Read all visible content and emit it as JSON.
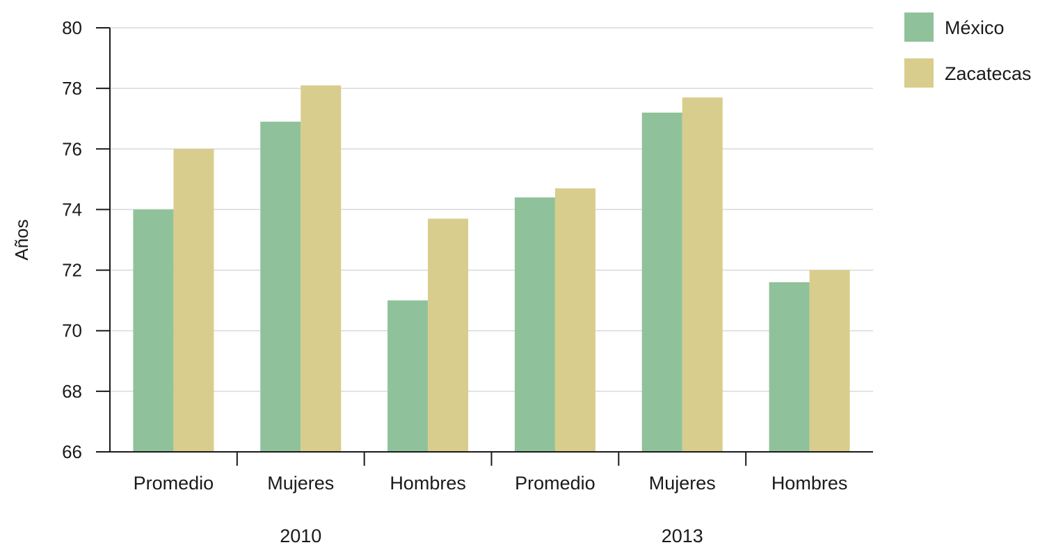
{
  "chart_data": {
    "type": "bar",
    "ylabel": "Años",
    "ylim": [
      66,
      80
    ],
    "yticks": [
      66,
      68,
      70,
      72,
      74,
      76,
      78,
      80
    ],
    "grid": true,
    "legend_position": "top-right",
    "groups": [
      {
        "label": "2010",
        "categories": [
          "Promedio",
          "Mujeres",
          "Hombres"
        ]
      },
      {
        "label": "2013",
        "categories": [
          "Promedio",
          "Mujeres",
          "Hombres"
        ]
      }
    ],
    "categories": [
      "Promedio",
      "Mujeres",
      "Hombres",
      "Promedio",
      "Mujeres",
      "Hombres"
    ],
    "series": [
      {
        "name": "México",
        "color": "#8fc29a",
        "values": [
          74.0,
          76.9,
          71.0,
          74.4,
          77.2,
          71.6
        ]
      },
      {
        "name": "Zacatecas",
        "color": "#d8cd8c",
        "values": [
          76.0,
          78.1,
          73.7,
          74.7,
          77.7,
          72.0
        ]
      }
    ]
  }
}
